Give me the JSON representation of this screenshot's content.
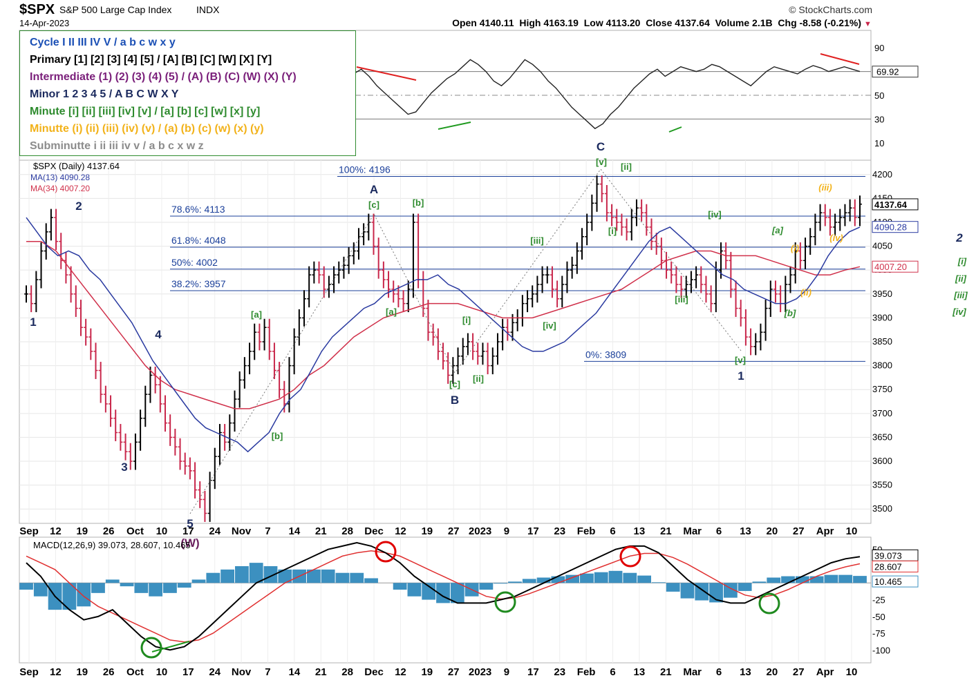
{
  "header": {
    "symbol": "$SPX",
    "name": "S&P 500 Large Cap Index",
    "exchange": "INDX",
    "date": "14-Apr-2023",
    "source": "© StockCharts.com",
    "quote": "Open 4140.11  High 4163.19  Low 4113.20  Close 4137.64  Volume 2.1B  Chg -8.58 (-0.21%)",
    "chg_arrow": "▼"
  },
  "legend": [
    {
      "text": "Cycle I II III IV V / a b c w x y",
      "color": "#1a4fb5"
    },
    {
      "text": "Primary [1] [2] [3] [4] [5] / [A] [B] [C] [W] [X] [Y]",
      "color": "#000000"
    },
    {
      "text": "Intermediate (1) (2) (3) (4) (5) / (A) (B) (C) (W) (X) (Y)",
      "color": "#7a1f7a"
    },
    {
      "text": "Minor 1 2 3 4 5 / A B C W X Y",
      "color": "#1b2a5e"
    },
    {
      "text": "Minute [i] [ii] [iii] [iv] [v] / [a] [b] [c] [w] [x] [y]",
      "color": "#2e8b2e"
    },
    {
      "text": "Minutte (i) (ii) (iii) (iv) (v) / (a) (b) (c) (w) (x) (y)",
      "color": "#f2b21a"
    },
    {
      "text": "Subminutte i ii iii iv v / a b c x w z",
      "color": "#8c8c8c"
    }
  ],
  "colors": {
    "up": "#000000",
    "down": "#c8264a",
    "ma13": "#2a3aa0",
    "ma34": "#d0304a",
    "macd": "#000000",
    "signal": "#e03030",
    "hist": "#3c90c0",
    "rsi": "#222222",
    "rsi_fill_high": "#4f7a4f",
    "rsi_fill_low": "#7a4040",
    "fib": "#1a3f9a",
    "wave_green": "#2e8b2e",
    "wave_navy": "#1b2a5e",
    "wave_orange": "#f2b21a"
  },
  "chart_data": [
    {
      "type": "line",
      "panel": "rsi",
      "yaxis_ticks": [
        10,
        30,
        50,
        70,
        90
      ],
      "last_value_label": "69.92",
      "values": [
        62,
        65,
        58,
        70,
        75,
        72,
        70,
        66,
        60,
        50,
        45,
        40,
        32,
        28,
        30,
        35,
        42,
        48,
        45,
        40,
        48,
        58,
        66,
        72,
        78,
        74,
        70,
        76,
        80,
        78,
        72,
        68,
        74,
        80,
        76,
        70,
        66,
        60,
        54,
        50,
        56,
        62,
        68,
        72,
        66,
        58,
        52,
        46,
        40,
        34,
        36,
        44,
        52,
        58,
        64,
        68,
        74,
        80,
        76,
        70,
        62,
        58,
        64,
        72,
        80,
        76,
        70,
        62,
        56,
        48,
        40,
        34,
        28,
        22,
        26,
        34,
        40,
        48,
        56,
        62,
        68,
        72,
        66,
        70,
        74,
        72,
        70,
        72,
        76,
        74,
        70,
        66,
        62,
        58,
        64,
        70,
        74,
        72,
        70,
        68,
        72,
        75,
        73,
        70,
        72,
        74,
        72,
        70
      ]
    },
    {
      "type": "bar",
      "panel": "price",
      "title": "$SPX (Daily) 4137.64",
      "series": [
        {
          "name": "MA(13) 4090.28"
        },
        {
          "name": "MA(34) 4007.20"
        }
      ],
      "price_path": [
        3950,
        3930,
        3980,
        4040,
        4080,
        4110,
        4060,
        4020,
        3990,
        3950,
        3920,
        3880,
        3860,
        3830,
        3790,
        3740,
        3720,
        3690,
        3660,
        3640,
        3620,
        3600,
        3640,
        3690,
        3740,
        3780,
        3760,
        3720,
        3680,
        3650,
        3630,
        3600,
        3590,
        3580,
        3540,
        3520,
        3491,
        3560,
        3610,
        3660,
        3640,
        3680,
        3730,
        3770,
        3800,
        3830,
        3870,
        3850,
        3880,
        3830,
        3790,
        3750,
        3720,
        3800,
        3860,
        3900,
        3940,
        3990,
        4000,
        3990,
        3960,
        3970,
        3990,
        4000,
        4010,
        4030,
        4040,
        4070,
        4080,
        4100,
        4050,
        4000,
        3980,
        3960,
        3950,
        3940,
        3930,
        3960,
        4100,
        3980,
        3920,
        3870,
        3860,
        3830,
        3810,
        3780,
        3800,
        3820,
        3840,
        3850,
        3830,
        3820,
        3830,
        3800,
        3820,
        3850,
        3880,
        3870,
        3890,
        3900,
        3930,
        3940,
        3950,
        3970,
        3990,
        3990,
        3960,
        3940,
        3970,
        4000,
        4010,
        4040,
        4070,
        4100,
        4140,
        4180,
        4160,
        4120,
        4110,
        4100,
        4090,
        4080,
        4110,
        4130,
        4120,
        4090,
        4060,
        4050,
        4020,
        4000,
        3990,
        3970,
        3960,
        3970,
        3980,
        3990,
        3970,
        3950,
        3930,
        4000,
        4040,
        4020,
        3960,
        3920,
        3900,
        3860,
        3840,
        3850,
        3870,
        3920,
        3960,
        3950,
        3930,
        3970,
        3990,
        4040,
        4020,
        4050,
        4070,
        4100,
        4120,
        4110,
        4090,
        4100,
        4110,
        4120,
        4130,
        4110,
        4138
      ],
      "ma13": [
        4110,
        4080,
        4050,
        4030,
        4040,
        4030,
        4000,
        3980,
        3950,
        3920,
        3890,
        3850,
        3810,
        3780,
        3750,
        3720,
        3690,
        3670,
        3660,
        3650,
        3640,
        3620,
        3640,
        3660,
        3700,
        3730,
        3750,
        3790,
        3830,
        3860,
        3880,
        3900,
        3920,
        3930,
        3950,
        3960,
        3970,
        3980,
        3980,
        3990,
        3970,
        3960,
        3940,
        3920,
        3900,
        3880,
        3860,
        3840,
        3830,
        3830,
        3840,
        3850,
        3870,
        3890,
        3910,
        3940,
        3970,
        4000,
        4030,
        4060,
        4080,
        4090,
        4070,
        4050,
        4030,
        4010,
        3990,
        3980,
        3960,
        3950,
        3940,
        3930,
        3930,
        3940,
        3960,
        3990,
        4030,
        4060,
        4080,
        4090
      ],
      "ma34": [
        4060,
        4060,
        4040,
        4000,
        3960,
        3920,
        3880,
        3840,
        3800,
        3770,
        3750,
        3740,
        3730,
        3720,
        3710,
        3710,
        3720,
        3730,
        3750,
        3780,
        3800,
        3830,
        3860,
        3880,
        3900,
        3910,
        3920,
        3930,
        3930,
        3930,
        3920,
        3910,
        3900,
        3900,
        3900,
        3910,
        3920,
        3930,
        3940,
        3950,
        3960,
        3980,
        4000,
        4020,
        4030,
        4040,
        4040,
        4030,
        4030,
        4030,
        4020,
        4010,
        4000,
        3990,
        3990,
        4000,
        4007
      ]
    },
    {
      "type": "line",
      "panel": "macd",
      "title": "MACD(12,26,9) 39.073, 28.607, 10.465",
      "series": [
        {
          "name": "MACD",
          "values": [
            30,
            10,
            -20,
            -40,
            -55,
            -50,
            -40,
            -60,
            -80,
            -95,
            -100,
            -95,
            -80,
            -60,
            -40,
            -20,
            0,
            10,
            20,
            30,
            40,
            50,
            55,
            60,
            55,
            45,
            30,
            10,
            -5,
            -20,
            -30,
            -30,
            -30,
            -25,
            -20,
            -10,
            0,
            10,
            20,
            30,
            40,
            50,
            55,
            55,
            45,
            25,
            5,
            -10,
            -25,
            -30,
            -30,
            -20,
            -10,
            0,
            10,
            20,
            30,
            36,
            39.073
          ]
        },
        {
          "name": "Signal",
          "values": [
            40,
            30,
            20,
            0,
            -20,
            -35,
            -45,
            -55,
            -65,
            -75,
            -85,
            -88,
            -85,
            -75,
            -60,
            -45,
            -30,
            -15,
            0,
            10,
            20,
            30,
            40,
            45,
            48,
            45,
            40,
            30,
            20,
            10,
            0,
            -10,
            -20,
            -24,
            -22,
            -16,
            -8,
            0,
            8,
            16,
            24,
            32,
            40,
            44,
            44,
            38,
            28,
            16,
            4,
            -8,
            -18,
            -22,
            -18,
            -10,
            0,
            10,
            18,
            24,
            28.607
          ]
        },
        {
          "name": "Histogram",
          "values": [
            -10,
            -20,
            -40,
            -40,
            -35,
            -15,
            5,
            -5,
            -15,
            -20,
            -15,
            -7,
            5,
            15,
            20,
            25,
            30,
            25,
            20,
            20,
            20,
            20,
            15,
            15,
            7,
            0,
            -10,
            -20,
            -25,
            -30,
            -30,
            -20,
            -10,
            -1,
            2,
            6,
            8,
            10,
            12,
            14,
            16,
            18,
            15,
            11,
            1,
            -13,
            -23,
            -26,
            -29,
            -22,
            -12,
            2,
            8,
            10,
            10,
            10,
            12,
            12,
            10.465
          ]
        }
      ],
      "yaxis_ticks": [
        "50",
        "-25",
        "-50",
        "-75",
        "-100"
      ],
      "last_values": [
        "39.073",
        "28.607",
        "10.465"
      ]
    }
  ],
  "price_axis": {
    "ticks": [
      "4200",
      "4150",
      "4100",
      "4050",
      "4000",
      "3950",
      "3900",
      "3850",
      "3800",
      "3750",
      "3700",
      "3650",
      "3600",
      "3550",
      "3500"
    ],
    "tick_values": [
      4200,
      4150,
      4100,
      4050,
      4000,
      3950,
      3900,
      3850,
      3800,
      3750,
      3700,
      3650,
      3600,
      3550,
      3500
    ],
    "last_labels": [
      {
        "text": "4137.64",
        "value": 4137.64,
        "color": "#000000"
      },
      {
        "text": "4090.28",
        "value": 4090.28,
        "color": "#2a3aa0"
      },
      {
        "text": "4007.20",
        "value": 4007.2,
        "color": "#d0304a"
      }
    ]
  },
  "x_axis_labels": [
    "Sep",
    "12",
    "19",
    "26",
    "Oct",
    "10",
    "17",
    "24",
    "Nov",
    "7",
    "14",
    "21",
    "28",
    "Dec",
    "12",
    "19",
    "27",
    "2023",
    "9",
    "17",
    "23",
    "Feb",
    "6",
    "13",
    "21",
    "Mar",
    "6",
    "13",
    "20",
    "27",
    "Apr",
    "10"
  ],
  "fibonacci": [
    {
      "label": "100%: 4196",
      "value": 4196
    },
    {
      "label": "78.6%: 4113",
      "value": 4113
    },
    {
      "label": "61.8%: 4048",
      "value": 4048
    },
    {
      "label": "50%: 4002",
      "value": 4002
    },
    {
      "label": "38.2%: 3957",
      "value": 3957
    },
    {
      "label": "0%: 3809",
      "value": 3809
    }
  ],
  "wave_labels": [
    {
      "text": "1",
      "color": "navy"
    },
    {
      "text": "2",
      "color": "navy"
    },
    {
      "text": "3",
      "color": "navy"
    },
    {
      "text": "4",
      "color": "navy"
    },
    {
      "text": "5",
      "color": "navy"
    },
    {
      "text": "(W)",
      "color": "purple"
    },
    {
      "text": "A",
      "color": "navy"
    },
    {
      "text": "B",
      "color": "navy"
    },
    {
      "text": "C",
      "color": "navy"
    },
    {
      "text": "1",
      "color": "navy"
    },
    {
      "text": "2",
      "color": "navy_italic"
    },
    {
      "text": "[a]",
      "color": "green"
    },
    {
      "text": "[b]",
      "color": "green"
    },
    {
      "text": "[c]",
      "color": "green"
    },
    {
      "text": "[a]",
      "color": "green"
    },
    {
      "text": "[b]",
      "color": "green"
    },
    {
      "text": "[c]",
      "color": "green"
    },
    {
      "text": "[i]",
      "color": "green"
    },
    {
      "text": "[ii]",
      "color": "green"
    },
    {
      "text": "[iii]",
      "color": "green"
    },
    {
      "text": "[iv]",
      "color": "green"
    },
    {
      "text": "[v]",
      "color": "green"
    },
    {
      "text": "[ii]",
      "color": "green"
    },
    {
      "text": "[i]",
      "color": "green"
    },
    {
      "text": "[iii]",
      "color": "green"
    },
    {
      "text": "[iv]",
      "color": "green"
    },
    {
      "text": "[v]",
      "color": "green"
    },
    {
      "text": "[a]",
      "color": "green_italic"
    },
    {
      "text": "[b]",
      "color": "green_italic"
    },
    {
      "text": "(i)",
      "color": "orange"
    },
    {
      "text": "(ii)",
      "color": "orange"
    },
    {
      "text": "(iii)",
      "color": "orange"
    },
    {
      "text": "(iv)",
      "color": "orange"
    },
    {
      "text": "[i]",
      "color": "green_italic"
    },
    {
      "text": "[ii]",
      "color": "green_italic"
    },
    {
      "text": "[iii]",
      "color": "green_italic"
    },
    {
      "text": "[iv]",
      "color": "green_italic"
    }
  ]
}
